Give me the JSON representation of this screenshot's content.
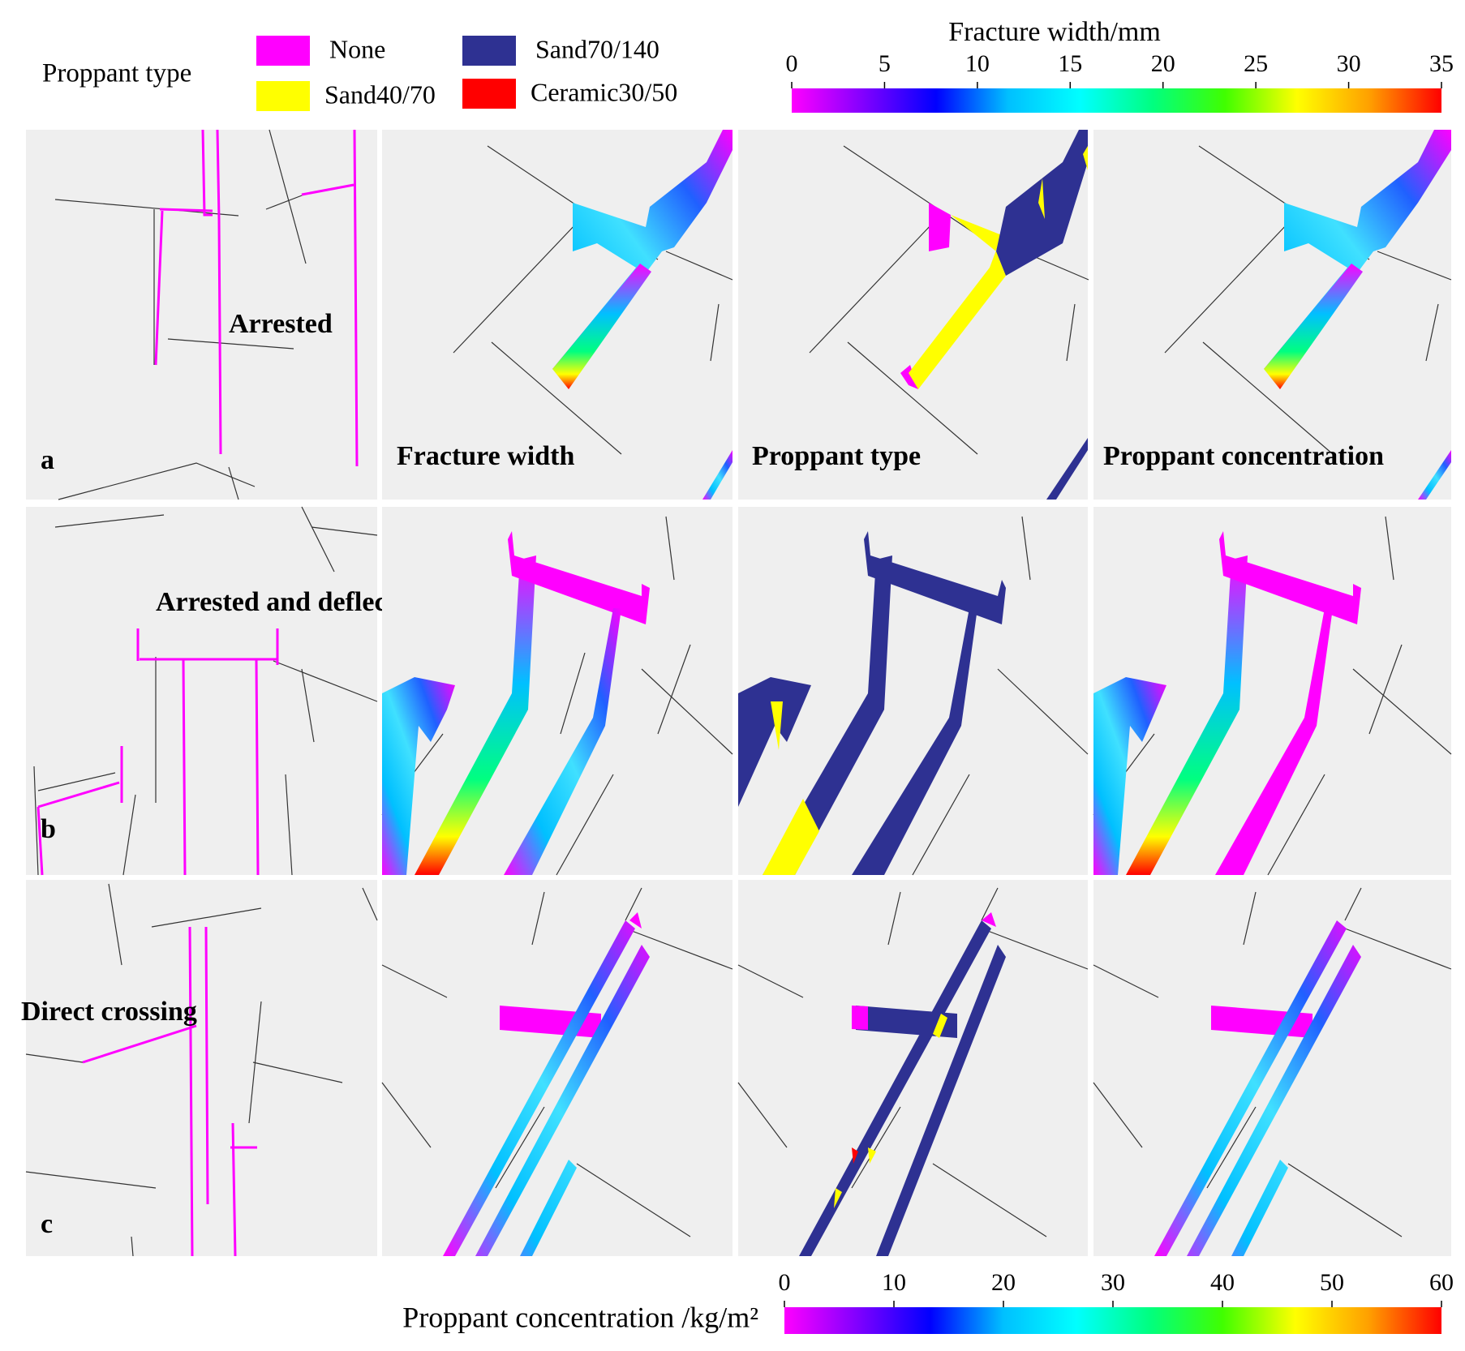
{
  "legend": {
    "title": "Proppant type",
    "items": [
      {
        "label": "None",
        "color": "#ff00ff"
      },
      {
        "label": "Sand40/70",
        "color": "#ffff00"
      },
      {
        "label": "Sand70/140",
        "color": "#2e3192"
      },
      {
        "label": "Ceramic30/50",
        "color": "#ff0000"
      }
    ]
  },
  "colorbars": [
    {
      "title": "Fracture width/mm",
      "lim": [
        0,
        35
      ],
      "ticks": [
        0,
        5,
        10,
        15,
        20,
        25,
        30,
        35
      ]
    },
    {
      "title": "Proppant concentration /kg/m²",
      "lim": [
        0,
        60
      ],
      "ticks": [
        0,
        10,
        20,
        30,
        40,
        50,
        60
      ]
    }
  ],
  "colormap": [
    "#ff00ff",
    "#8000ff",
    "#0000ff",
    "#00c0ff",
    "#00ffff",
    "#00ff80",
    "#40ff00",
    "#ffff00",
    "#ffa000",
    "#ff0000"
  ],
  "columns": [
    "Fracture width",
    "Proppant type",
    "Proppant concentration"
  ],
  "rows": [
    {
      "label": "a",
      "annotation": "Arrested"
    },
    {
      "label": "b",
      "annotation": "Arrested and deflect"
    },
    {
      "label": "c",
      "annotation": "Direct crossing"
    }
  ]
}
